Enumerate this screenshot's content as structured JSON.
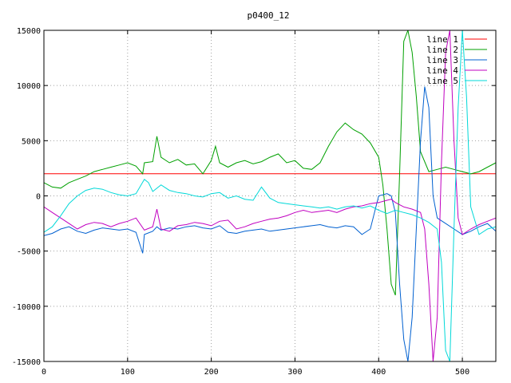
{
  "chart_data": {
    "type": "line",
    "title": "p0400_12",
    "xlabel": "",
    "ylabel": "",
    "xlim": [
      0,
      540
    ],
    "ylim": [
      -15000,
      15000
    ],
    "x_ticks": [
      0,
      100,
      200,
      300,
      400,
      500
    ],
    "y_ticks": [
      -15000,
      -10000,
      -5000,
      0,
      5000,
      10000,
      15000
    ],
    "grid": true,
    "legend_position": "top-right",
    "series": [
      {
        "name": "line 1",
        "color": "#ff0000",
        "points": [
          [
            0,
            2000
          ],
          [
            540,
            2000
          ]
        ]
      },
      {
        "name": "line 2",
        "color": "#00a000",
        "points": [
          [
            0,
            1200
          ],
          [
            10,
            800
          ],
          [
            20,
            700
          ],
          [
            30,
            1200
          ],
          [
            40,
            1500
          ],
          [
            50,
            1800
          ],
          [
            60,
            2200
          ],
          [
            70,
            2400
          ],
          [
            80,
            2600
          ],
          [
            90,
            2800
          ],
          [
            100,
            3000
          ],
          [
            110,
            2700
          ],
          [
            118,
            2000
          ],
          [
            120,
            3000
          ],
          [
            130,
            3100
          ],
          [
            135,
            5400
          ],
          [
            140,
            3500
          ],
          [
            150,
            3000
          ],
          [
            160,
            3300
          ],
          [
            170,
            2800
          ],
          [
            180,
            2900
          ],
          [
            190,
            2000
          ],
          [
            200,
            3200
          ],
          [
            205,
            4500
          ],
          [
            210,
            3000
          ],
          [
            220,
            2600
          ],
          [
            230,
            3000
          ],
          [
            240,
            3200
          ],
          [
            250,
            2900
          ],
          [
            260,
            3100
          ],
          [
            270,
            3500
          ],
          [
            280,
            3800
          ],
          [
            290,
            3000
          ],
          [
            300,
            3200
          ],
          [
            310,
            2500
          ],
          [
            320,
            2400
          ],
          [
            330,
            3000
          ],
          [
            340,
            4500
          ],
          [
            350,
            5800
          ],
          [
            360,
            6600
          ],
          [
            370,
            6000
          ],
          [
            380,
            5600
          ],
          [
            390,
            4800
          ],
          [
            400,
            3500
          ],
          [
            405,
            1000
          ],
          [
            410,
            -3000
          ],
          [
            415,
            -8000
          ],
          [
            420,
            -9000
          ],
          [
            425,
            2000
          ],
          [
            430,
            14000
          ],
          [
            435,
            15000
          ],
          [
            440,
            13000
          ],
          [
            445,
            9000
          ],
          [
            450,
            4000
          ],
          [
            460,
            2200
          ],
          [
            470,
            2400
          ],
          [
            480,
            2600
          ],
          [
            490,
            2400
          ],
          [
            500,
            2200
          ],
          [
            510,
            2000
          ],
          [
            520,
            2200
          ],
          [
            530,
            2600
          ],
          [
            540,
            3000
          ]
        ]
      },
      {
        "name": "line 3",
        "color": "#0060d0",
        "points": [
          [
            0,
            -3600
          ],
          [
            10,
            -3400
          ],
          [
            20,
            -3000
          ],
          [
            30,
            -2800
          ],
          [
            40,
            -3200
          ],
          [
            50,
            -3400
          ],
          [
            60,
            -3100
          ],
          [
            70,
            -2900
          ],
          [
            80,
            -3000
          ],
          [
            90,
            -3100
          ],
          [
            100,
            -3000
          ],
          [
            110,
            -3300
          ],
          [
            118,
            -5200
          ],
          [
            120,
            -3500
          ],
          [
            130,
            -3200
          ],
          [
            135,
            -2800
          ],
          [
            140,
            -3100
          ],
          [
            150,
            -2900
          ],
          [
            160,
            -3000
          ],
          [
            170,
            -2800
          ],
          [
            180,
            -2700
          ],
          [
            190,
            -2900
          ],
          [
            200,
            -3000
          ],
          [
            210,
            -2700
          ],
          [
            220,
            -3300
          ],
          [
            230,
            -3400
          ],
          [
            240,
            -3200
          ],
          [
            250,
            -3100
          ],
          [
            260,
            -3000
          ],
          [
            270,
            -3200
          ],
          [
            280,
            -3100
          ],
          [
            290,
            -3000
          ],
          [
            300,
            -2900
          ],
          [
            310,
            -2800
          ],
          [
            320,
            -2700
          ],
          [
            330,
            -2600
          ],
          [
            340,
            -2800
          ],
          [
            350,
            -2900
          ],
          [
            360,
            -2700
          ],
          [
            370,
            -2800
          ],
          [
            380,
            -3500
          ],
          [
            390,
            -3000
          ],
          [
            400,
            0
          ],
          [
            410,
            200
          ],
          [
            415,
            0
          ],
          [
            420,
            -1500
          ],
          [
            425,
            -8000
          ],
          [
            430,
            -13000
          ],
          [
            435,
            -15000
          ],
          [
            440,
            -11000
          ],
          [
            445,
            -3000
          ],
          [
            450,
            5000
          ],
          [
            455,
            9900
          ],
          [
            460,
            8000
          ],
          [
            465,
            0
          ],
          [
            470,
            -2000
          ],
          [
            480,
            -2500
          ],
          [
            490,
            -3000
          ],
          [
            500,
            -3500
          ],
          [
            510,
            -3200
          ],
          [
            520,
            -2800
          ],
          [
            530,
            -2500
          ],
          [
            540,
            -3200
          ]
        ]
      },
      {
        "name": "line 4",
        "color": "#c000c0",
        "points": [
          [
            0,
            -1000
          ],
          [
            10,
            -1500
          ],
          [
            20,
            -2000
          ],
          [
            30,
            -2500
          ],
          [
            40,
            -3000
          ],
          [
            50,
            -2600
          ],
          [
            60,
            -2400
          ],
          [
            70,
            -2500
          ],
          [
            80,
            -2800
          ],
          [
            90,
            -2500
          ],
          [
            100,
            -2300
          ],
          [
            110,
            -2000
          ],
          [
            120,
            -3100
          ],
          [
            130,
            -2800
          ],
          [
            135,
            -1200
          ],
          [
            140,
            -3000
          ],
          [
            150,
            -3200
          ],
          [
            160,
            -2700
          ],
          [
            170,
            -2600
          ],
          [
            180,
            -2400
          ],
          [
            190,
            -2500
          ],
          [
            200,
            -2700
          ],
          [
            210,
            -2300
          ],
          [
            220,
            -2200
          ],
          [
            230,
            -3000
          ],
          [
            240,
            -2800
          ],
          [
            250,
            -2500
          ],
          [
            260,
            -2300
          ],
          [
            270,
            -2100
          ],
          [
            280,
            -2000
          ],
          [
            290,
            -1800
          ],
          [
            300,
            -1500
          ],
          [
            310,
            -1300
          ],
          [
            320,
            -1500
          ],
          [
            330,
            -1400
          ],
          [
            340,
            -1300
          ],
          [
            350,
            -1500
          ],
          [
            360,
            -1200
          ],
          [
            370,
            -1000
          ],
          [
            380,
            -900
          ],
          [
            390,
            -700
          ],
          [
            400,
            -600
          ],
          [
            410,
            -400
          ],
          [
            415,
            -300
          ],
          [
            420,
            -600
          ],
          [
            430,
            -1000
          ],
          [
            440,
            -1200
          ],
          [
            450,
            -1500
          ],
          [
            455,
            -3000
          ],
          [
            460,
            -8000
          ],
          [
            465,
            -15000
          ],
          [
            470,
            -11000
          ],
          [
            475,
            3000
          ],
          [
            480,
            13000
          ],
          [
            485,
            15000
          ],
          [
            490,
            5000
          ],
          [
            495,
            -2000
          ],
          [
            500,
            -3500
          ],
          [
            510,
            -3000
          ],
          [
            520,
            -2600
          ],
          [
            530,
            -2300
          ],
          [
            540,
            -2000
          ]
        ]
      },
      {
        "name": "line 5",
        "color": "#00d8d8",
        "points": [
          [
            0,
            -3300
          ],
          [
            10,
            -2800
          ],
          [
            20,
            -1800
          ],
          [
            30,
            -700
          ],
          [
            40,
            0
          ],
          [
            50,
            500
          ],
          [
            60,
            700
          ],
          [
            70,
            600
          ],
          [
            80,
            300
          ],
          [
            90,
            100
          ],
          [
            100,
            0
          ],
          [
            110,
            200
          ],
          [
            120,
            1500
          ],
          [
            125,
            1200
          ],
          [
            130,
            400
          ],
          [
            140,
            1000
          ],
          [
            150,
            500
          ],
          [
            160,
            300
          ],
          [
            170,
            200
          ],
          [
            180,
            0
          ],
          [
            190,
            -100
          ],
          [
            200,
            200
          ],
          [
            210,
            300
          ],
          [
            220,
            -200
          ],
          [
            230,
            0
          ],
          [
            240,
            -300
          ],
          [
            250,
            -400
          ],
          [
            260,
            800
          ],
          [
            270,
            -200
          ],
          [
            280,
            -600
          ],
          [
            290,
            -700
          ],
          [
            300,
            -800
          ],
          [
            310,
            -900
          ],
          [
            320,
            -1000
          ],
          [
            330,
            -1100
          ],
          [
            340,
            -1000
          ],
          [
            350,
            -1200
          ],
          [
            360,
            -1000
          ],
          [
            370,
            -900
          ],
          [
            380,
            -1100
          ],
          [
            390,
            -900
          ],
          [
            400,
            -1300
          ],
          [
            410,
            -1600
          ],
          [
            420,
            -1300
          ],
          [
            430,
            -1500
          ],
          [
            440,
            -1700
          ],
          [
            450,
            -2000
          ],
          [
            460,
            -2400
          ],
          [
            470,
            -3000
          ],
          [
            475,
            -6000
          ],
          [
            480,
            -14000
          ],
          [
            485,
            -15000
          ],
          [
            490,
            -3000
          ],
          [
            495,
            8000
          ],
          [
            500,
            15000
          ],
          [
            505,
            9000
          ],
          [
            510,
            -1000
          ],
          [
            520,
            -3500
          ],
          [
            530,
            -3000
          ],
          [
            540,
            -2800
          ]
        ]
      }
    ]
  }
}
